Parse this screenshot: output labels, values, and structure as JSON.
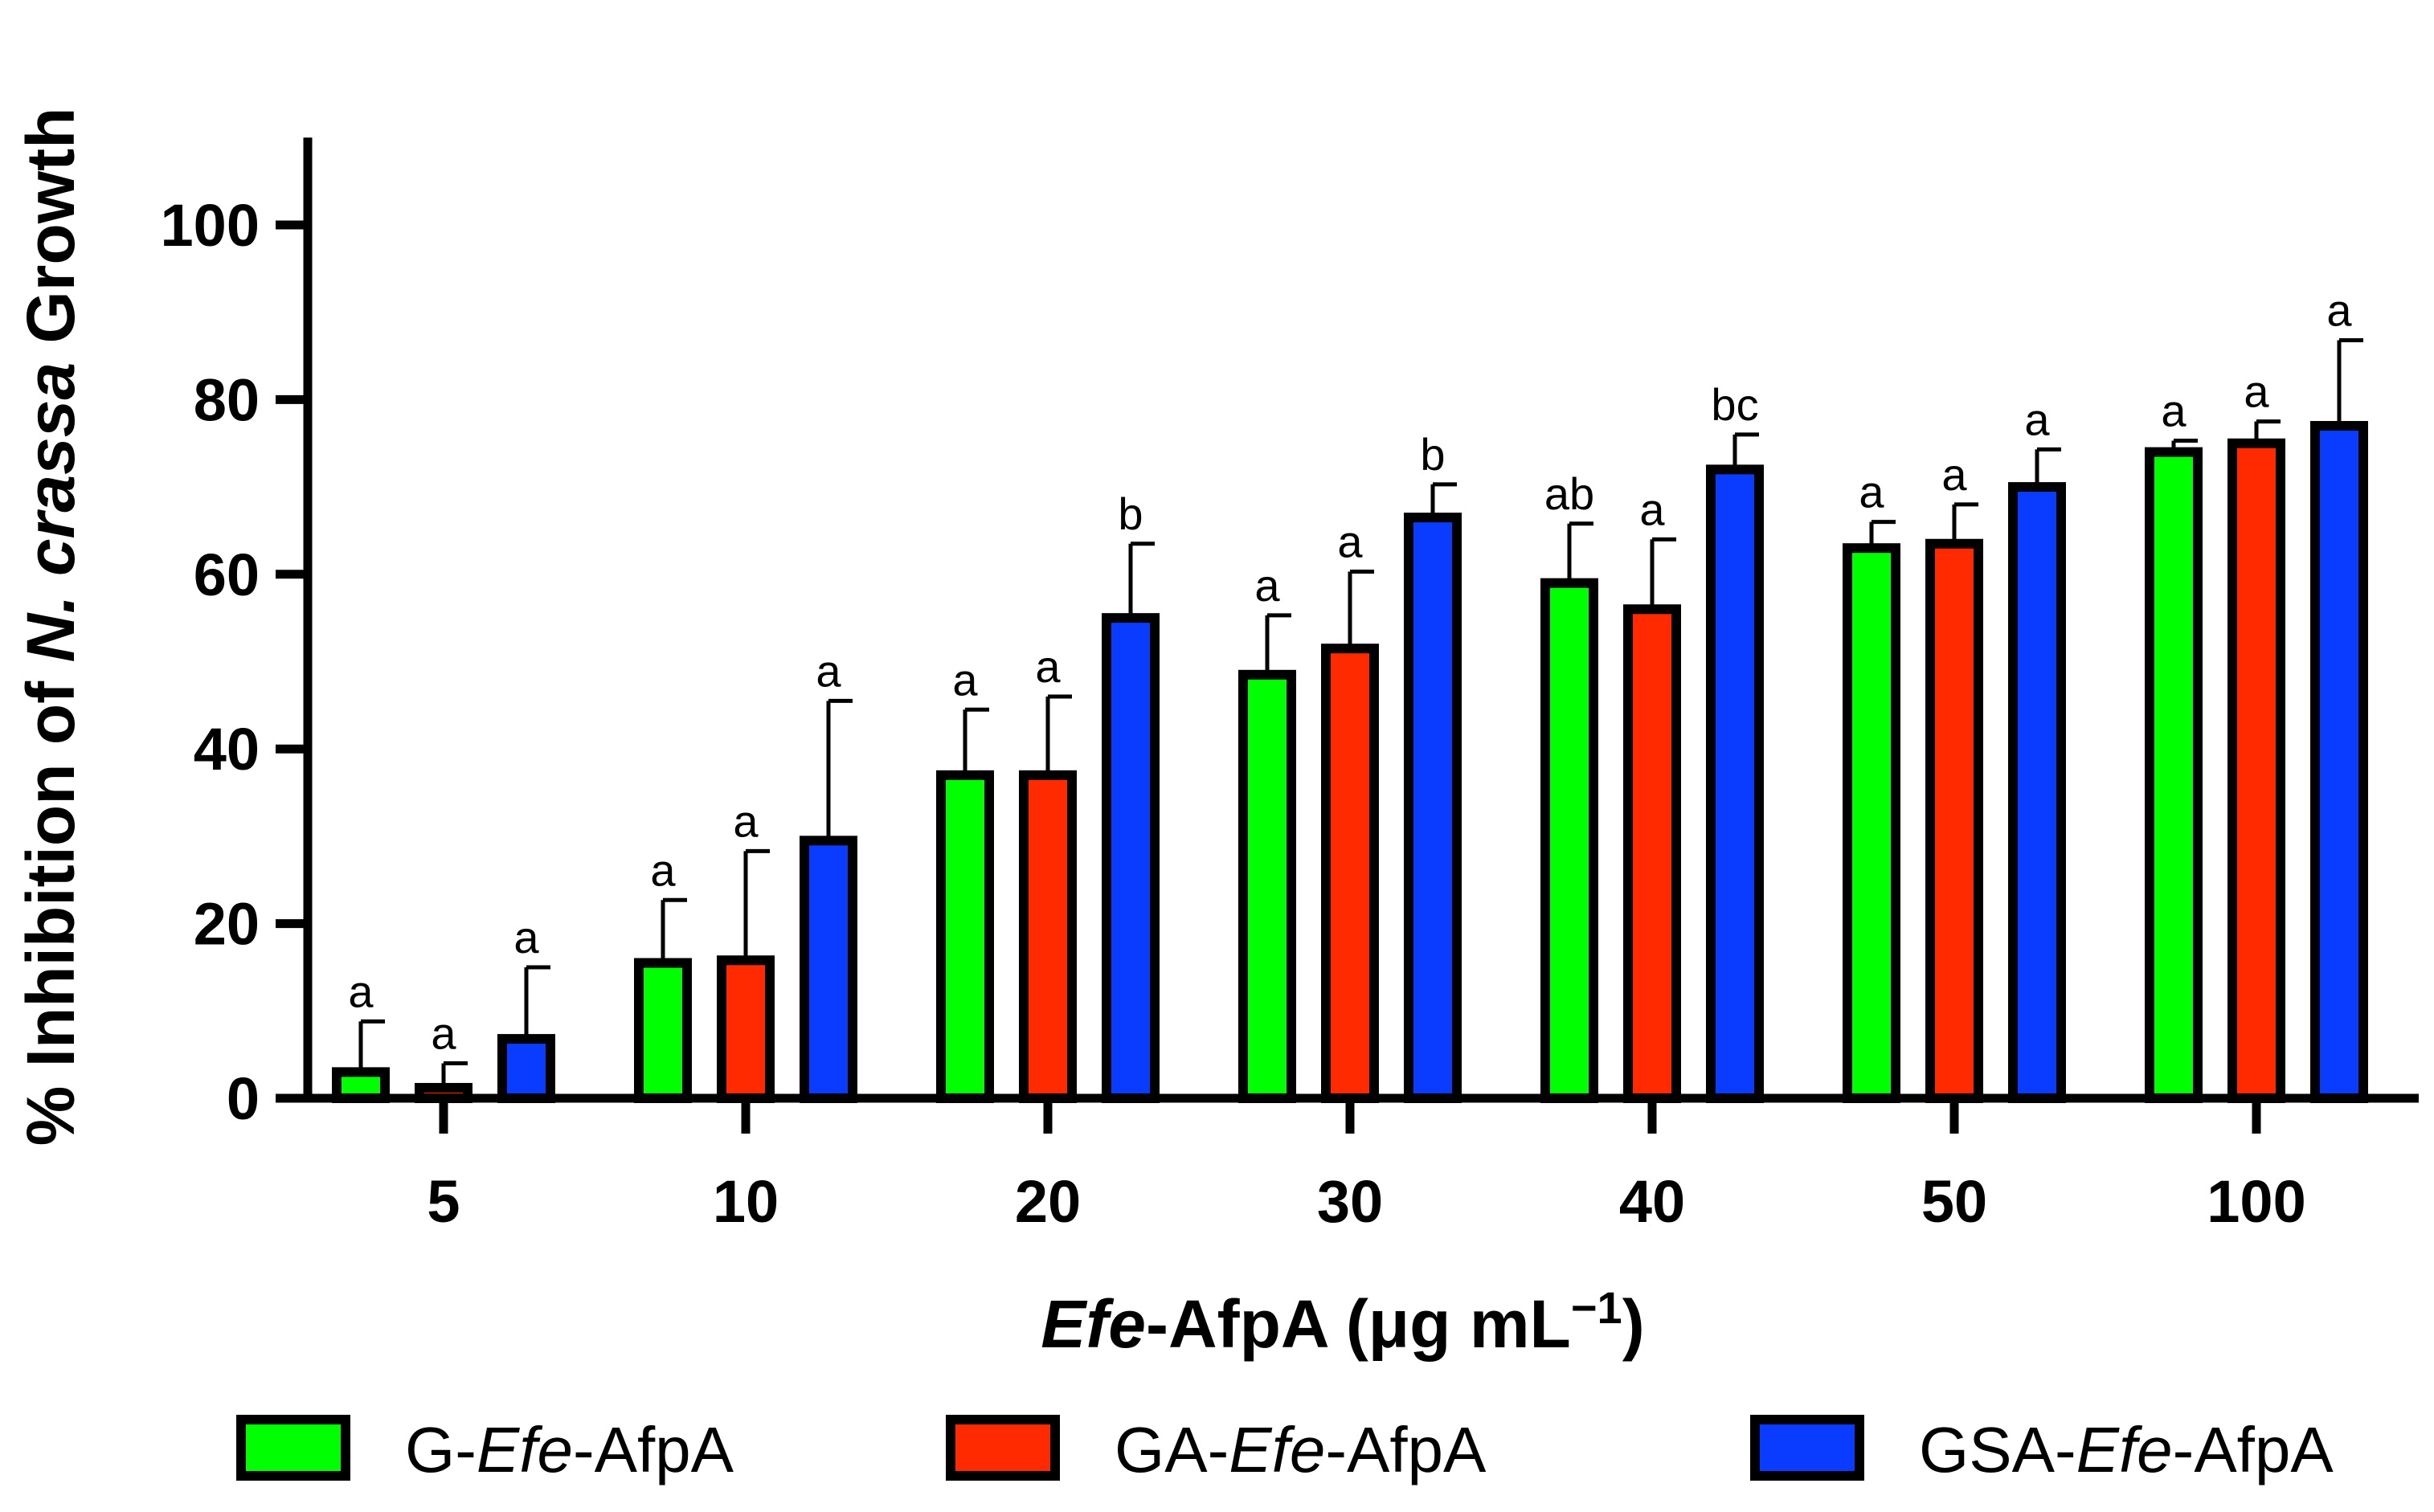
{
  "chart_data": {
    "type": "bar",
    "title": "",
    "xlabel": {
      "italic": "Efe",
      "plain": "-AfpA (μg mL",
      "superscript": "−1",
      "close": ")"
    },
    "ylabel": {
      "before": "% Inhibition of ",
      "italic": "N. crassa",
      "after": " Growth"
    },
    "ylim": [
      0,
      110
    ],
    "yticks": [
      0,
      20,
      40,
      60,
      80,
      100
    ],
    "grid": false,
    "legend_position": "bottom",
    "categories": [
      "5",
      "10",
      "20",
      "30",
      "40",
      "50",
      "100"
    ],
    "series": [
      {
        "name": "G-Efe-AfpA",
        "label_parts": [
          "G-",
          "Efe",
          "-AfpA"
        ],
        "color": "#00ff00",
        "values": [
          3,
          15.5,
          37,
          48.5,
          59,
          63,
          74
        ],
        "errors": [
          5.8,
          7.2,
          7.5,
          6.8,
          6.8,
          3,
          1.3
        ],
        "significance": [
          "a",
          "a",
          "a",
          "a",
          "ab",
          "a",
          "a"
        ]
      },
      {
        "name": "GA-Efe-AfpA",
        "label_parts": [
          "GA-",
          "Efe",
          "-AfpA"
        ],
        "color": "#ff2a00",
        "values": [
          1.2,
          15.8,
          37,
          51.5,
          56,
          63.5,
          75
        ],
        "errors": [
          2.8,
          12.5,
          9,
          8.8,
          8,
          4.5,
          2.5
        ],
        "significance": [
          "a",
          "a",
          "a",
          "a",
          "a",
          "a",
          "a"
        ]
      },
      {
        "name": "GSA-Efe-AfpA",
        "label_parts": [
          "GSA-",
          "Efe",
          "-AfpA"
        ],
        "color": "#0a3cff",
        "values": [
          6.8,
          29.5,
          55,
          66.5,
          72,
          70,
          77
        ],
        "errors": [
          8.2,
          16,
          8.5,
          3.8,
          4,
          4.3,
          9.8
        ],
        "significance": [
          "a",
          "a",
          "b",
          "b",
          "bc",
          "a",
          "a"
        ]
      }
    ]
  }
}
